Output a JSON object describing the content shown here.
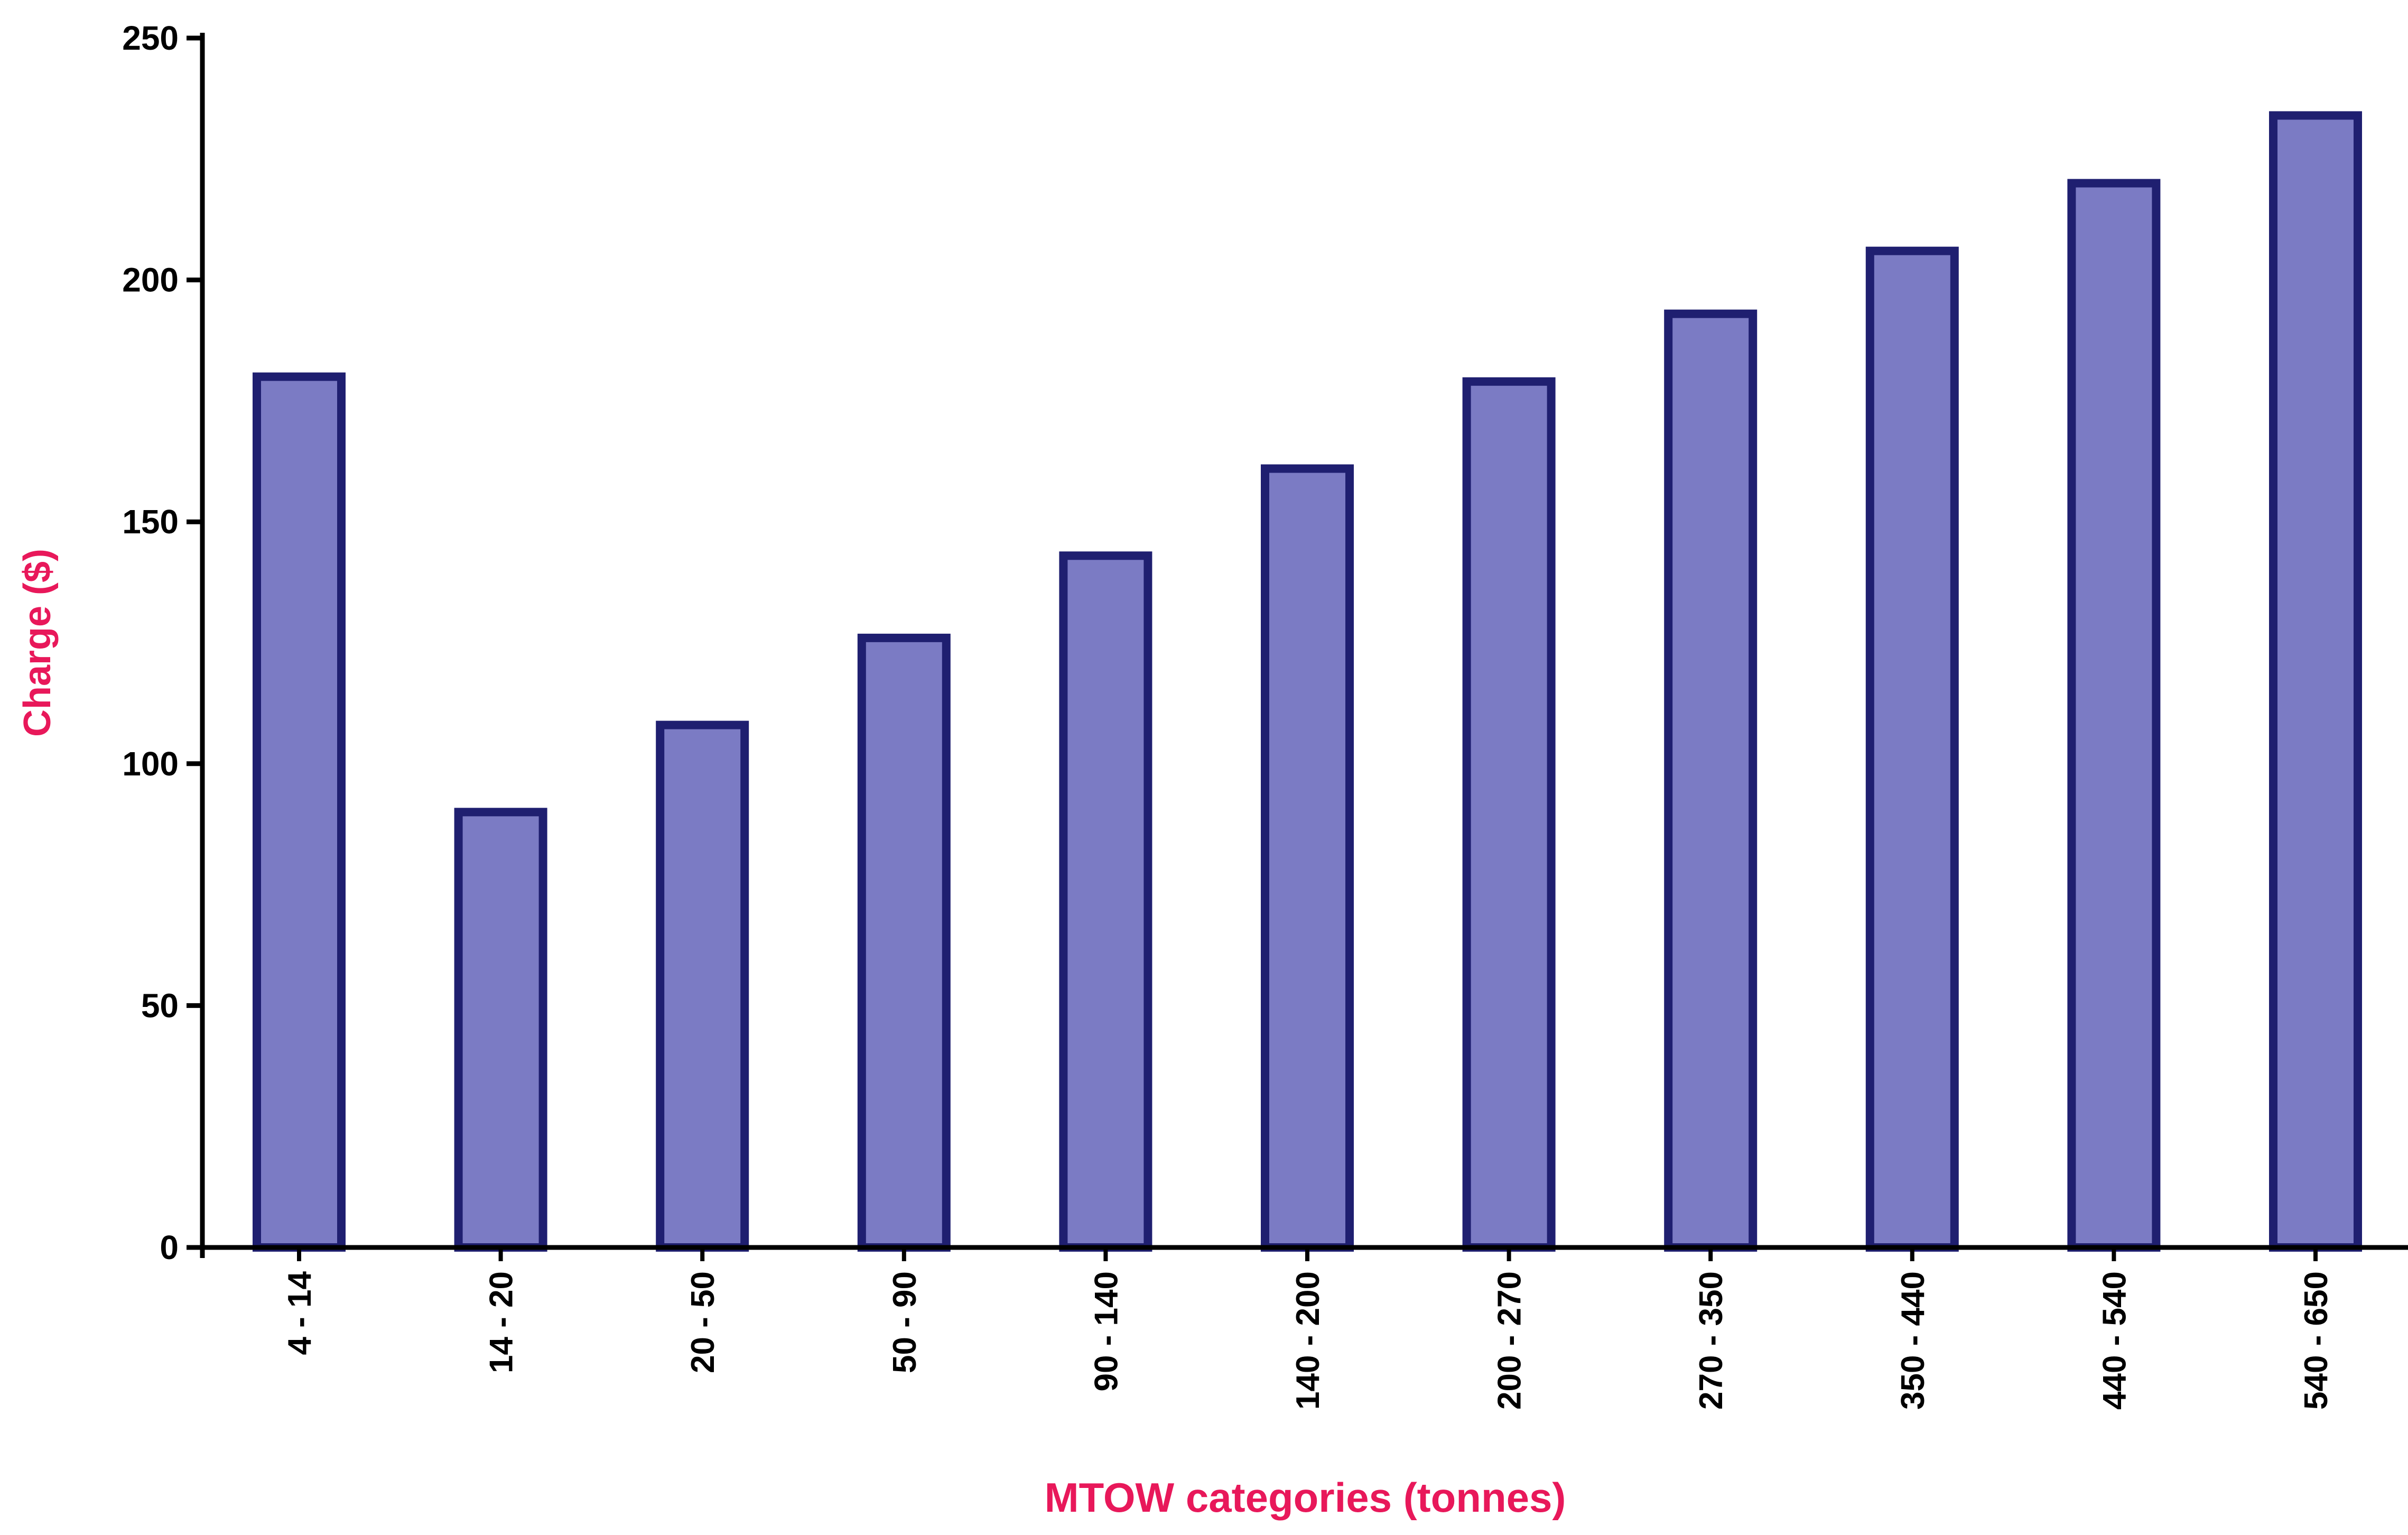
{
  "chart_data": {
    "type": "bar",
    "title": "",
    "xlabel": "MTOW categories (tonnes)",
    "ylabel": "Charge ($)",
    "categories": [
      "4 - 14",
      "14 - 20",
      "20 - 50",
      "50 - 90",
      "90 - 140",
      "140 - 200",
      "200 - 270",
      "270 - 350",
      "350 - 440",
      "440 - 540",
      "540 - 650"
    ],
    "values": [
      180,
      90,
      108,
      126,
      143,
      161,
      179,
      193,
      206,
      220,
      234
    ],
    "ylim": [
      0,
      250
    ],
    "yticks": [
      0,
      50,
      100,
      150,
      200,
      250
    ],
    "grid": false,
    "legend": "none",
    "colors": {
      "bar_fill": "#7b7bc4",
      "bar_stroke": "#1f1f70",
      "axis_title": "#e8185a",
      "axis": "#000000"
    }
  }
}
